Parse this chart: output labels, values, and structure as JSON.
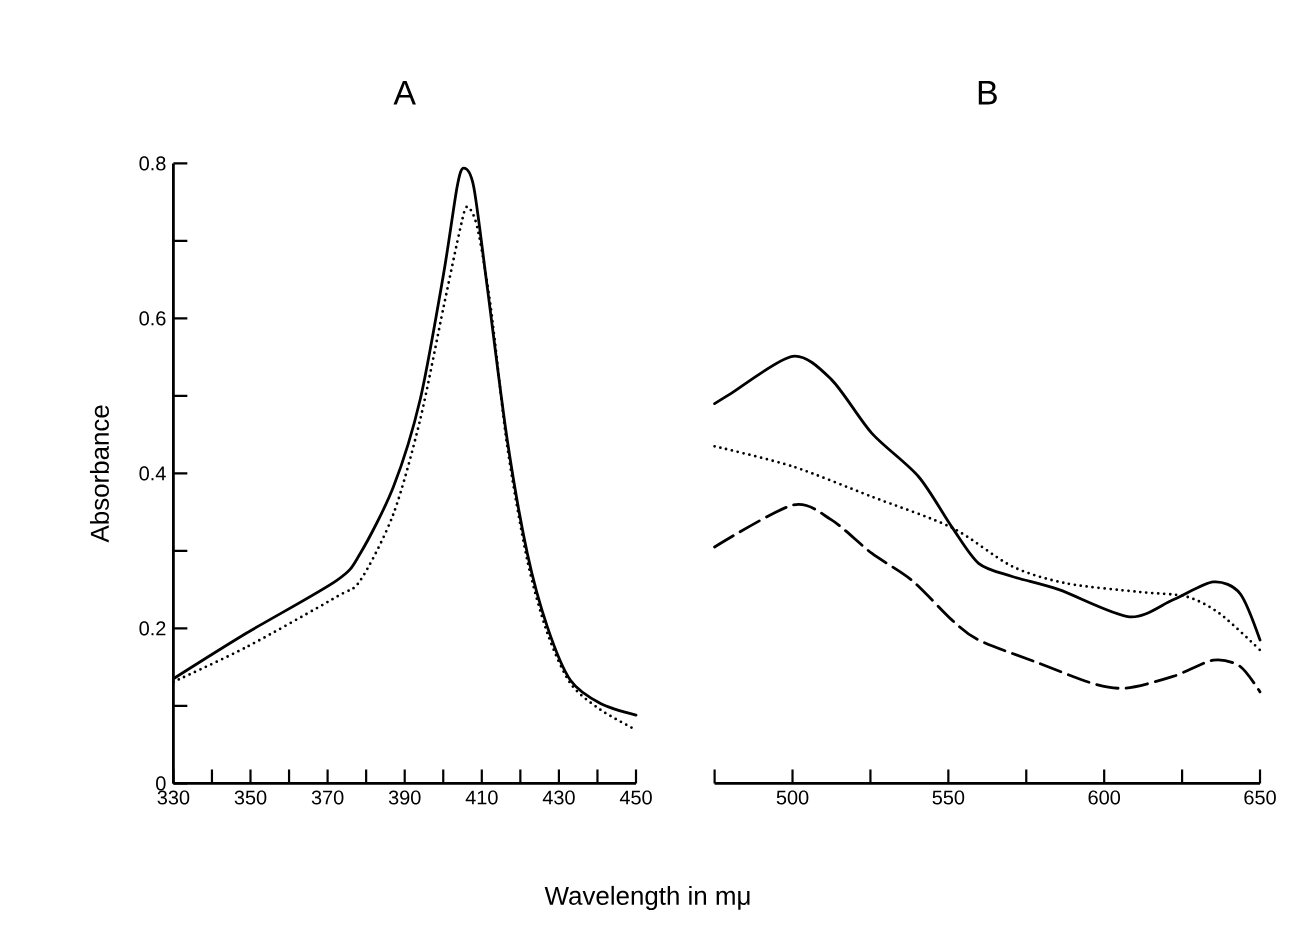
{
  "chart_data": [
    {
      "type": "line",
      "title": "A",
      "xlabel": "Wavelength in mμ",
      "ylabel": "Absorbance",
      "xlim": [
        330,
        450
      ],
      "ylim": [
        0,
        0.8
      ],
      "xticks": [
        330,
        {
          "value": 340,
          "label": null
        },
        350,
        {
          "value": 360,
          "label": null
        },
        370,
        {
          "value": 380,
          "label": null
        },
        390,
        {
          "value": 400,
          "label": null
        },
        410,
        {
          "value": 420,
          "label": null
        },
        430,
        {
          "value": 440,
          "label": null
        },
        450
      ],
      "yticks": [
        0,
        {
          "value": 0.1,
          "label": null
        },
        0.2,
        {
          "value": 0.3,
          "label": null
        },
        0.4,
        {
          "value": 0.5,
          "label": null
        },
        0.6,
        {
          "value": 0.7,
          "label": null
        },
        0.8
      ],
      "series": [
        {
          "color": "#000000",
          "line_style": "solid",
          "x": [
            330,
            349,
            372.4,
            378.5,
            387.1,
            394,
            400.1,
            403.6,
            405.3,
            407.9,
            411.4,
            416.6,
            421.8,
            427,
            433,
            440.8,
            450
          ],
          "values": [
            0.135,
            0.194,
            0.262,
            0.297,
            0.383,
            0.495,
            0.658,
            0.77,
            0.794,
            0.77,
            0.641,
            0.443,
            0.297,
            0.202,
            0.133,
            0.103,
            0.088
          ]
        },
        {
          "color": "#000000",
          "line_style": "dotted",
          "x": [
            330,
            349,
            372.4,
            378.5,
            387.1,
            394,
            400.1,
            404.5,
            406.2,
            408.8,
            412.3,
            416.6,
            421.8,
            427,
            433,
            440.8,
            450
          ],
          "values": [
            0.131,
            0.176,
            0.241,
            0.262,
            0.348,
            0.469,
            0.615,
            0.718,
            0.744,
            0.718,
            0.615,
            0.435,
            0.288,
            0.194,
            0.129,
            0.095,
            0.069
          ]
        }
      ]
    },
    {
      "type": "line",
      "title": "B",
      "tick_labels": "x",
      "xlim": [
        475,
        650
      ],
      "ylim": [
        0,
        0.8
      ],
      "xticks": [
        {
          "value": 475,
          "label": null
        },
        500,
        {
          "value": 525,
          "label": null
        },
        550,
        {
          "value": 575,
          "label": null
        },
        600,
        {
          "value": 625,
          "label": null
        },
        650
      ],
      "series": [
        {
          "color": "#000000",
          "line_style": "solid",
          "x": [
            475,
            480.2,
            500,
            512.5,
            525.4,
            540.4,
            551.1,
            559.7,
            570.5,
            585.5,
            608.1,
            622.1,
            635,
            643.6,
            650
          ],
          "values": [
            0.49,
            0.503,
            0.551,
            0.521,
            0.452,
            0.396,
            0.331,
            0.284,
            0.267,
            0.25,
            0.215,
            0.237,
            0.26,
            0.245,
            0.185
          ]
        },
        {
          "color": "#000000",
          "line_style": "dotted",
          "x": [
            475,
            500,
            525.4,
            551.1,
            570.5,
            588,
            611.3,
            626.4,
            637.1,
            650
          ],
          "values": [
            0.435,
            0.409,
            0.37,
            0.33,
            0.28,
            0.258,
            0.247,
            0.241,
            0.219,
            0.172
          ]
        },
        {
          "color": "#000000",
          "line_style": "dashed",
          "x": [
            475,
            500,
            512.5,
            525.4,
            538.3,
            551.1,
            559.7,
            579.1,
            596.3,
            607,
            622.1,
            635,
            643.6,
            650
          ],
          "values": [
            0.305,
            0.359,
            0.34,
            0.297,
            0.262,
            0.211,
            0.185,
            0.155,
            0.129,
            0.123,
            0.138,
            0.159,
            0.151,
            0.118
          ]
        }
      ]
    }
  ]
}
